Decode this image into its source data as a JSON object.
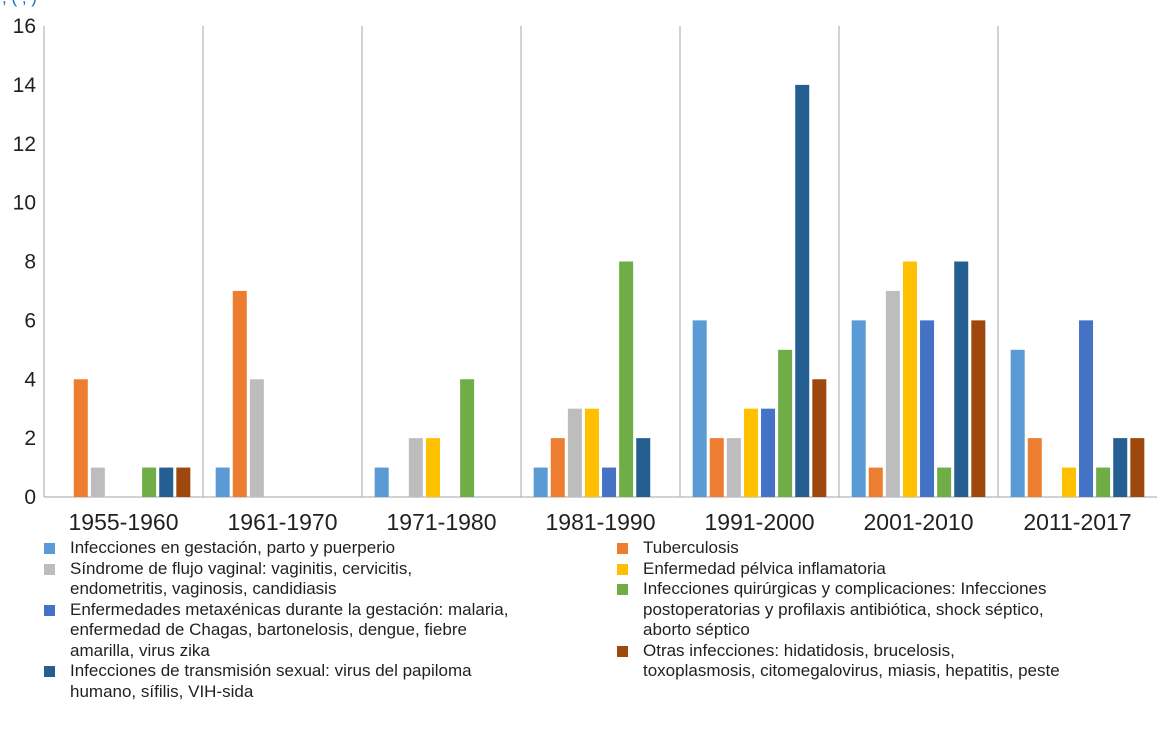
{
  "chart_data": {
    "type": "bar",
    "categories": [
      "1955-1960",
      "1961-1970",
      "1971-1980",
      "1981-1990",
      "1991-2000",
      "2001-2010",
      "2011-2017"
    ],
    "y_ticks": [
      "0",
      "2",
      "4",
      "6",
      "8",
      "10",
      "12",
      "14",
      "16"
    ],
    "ylim": [
      0,
      16
    ],
    "grid": "vertical separators between categories",
    "legend_position": "bottom",
    "series": [
      {
        "name": "Infecciones en gestación, parto y puerperio",
        "color": "#5b9bd5",
        "values": [
          0,
          1,
          1,
          1,
          6,
          6,
          5
        ]
      },
      {
        "name": "Tuberculosis",
        "color": "#ed7d31",
        "values": [
          4,
          7,
          0,
          2,
          2,
          1,
          2
        ]
      },
      {
        "name": "Síndrome de flujo vaginal: vaginitis, cervicitis,\nendometritis, vaginosis, candidiasis",
        "color": "#bdbdbd",
        "values": [
          1,
          4,
          2,
          3,
          2,
          7,
          0
        ]
      },
      {
        "name": "Enfermedad pélvica inflamatoria",
        "color": "#ffc000",
        "values": [
          0,
          0,
          2,
          3,
          3,
          8,
          1
        ]
      },
      {
        "name": "Enfermedades metaxénicas durante la gestación: malaria,\nenfermedad de Chagas, bartonelosis, dengue, fiebre\namarilla, virus zika",
        "color": "#4472c4",
        "values": [
          0,
          0,
          0,
          1,
          3,
          6,
          6
        ]
      },
      {
        "name": "Infecciones quirúrgicas y complicaciones: Infecciones\npostoperatorias y profilaxis antibiótica, shock séptico,\naborto séptico",
        "color": "#70ad47",
        "values": [
          1,
          0,
          4,
          8,
          5,
          1,
          1
        ]
      },
      {
        "name": "Infecciones de transmisión sexual: virus del papiloma\nhumano, sífilis, VIH-sida",
        "color": "#255e91",
        "values": [
          1,
          0,
          0,
          2,
          14,
          8,
          2
        ]
      },
      {
        "name": "Otras infecciones: hidatidosis, brucelosis,\ntoxoplasmosis, citomegalovirus, miasis, hepatitis, peste",
        "color": "#9e480e",
        "values": [
          1,
          0,
          0,
          0,
          4,
          6,
          2
        ]
      }
    ]
  },
  "top_fragment": "                          ,             (   ,   )"
}
